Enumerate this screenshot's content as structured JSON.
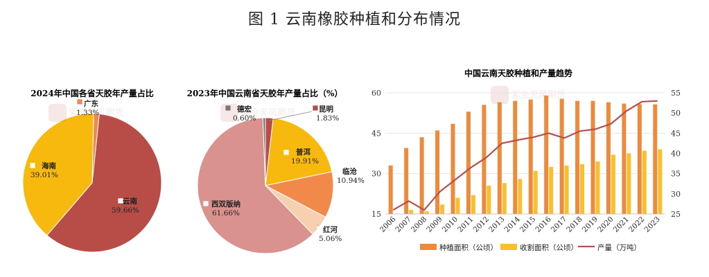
{
  "figure_title": "图 1  云南橡胶种植和分布情况",
  "watermark": "紫金天风期货",
  "chart_data": [
    {
      "type": "pie",
      "title": "2024年中国各省天胶年产量占比",
      "slices": [
        {
          "label": "广东",
          "value": 1.33,
          "value_text": "1.33%",
          "color": "#F0894A"
        },
        {
          "label": "云南",
          "value": 59.66,
          "value_text": "59.66%",
          "color": "#B84C47"
        },
        {
          "label": "海南",
          "value": 39.01,
          "value_text": "39.01%",
          "color": "#F7B90E"
        }
      ]
    },
    {
      "type": "pie",
      "title": "2023年中国云南省天胶年产量占比（%）",
      "slices": [
        {
          "label": "昆明",
          "value": 1.83,
          "value_text": "1.83%",
          "color": "#B84C47"
        },
        {
          "label": "普洱",
          "value": 19.91,
          "value_text": "19.91%",
          "color": "#F7B90E"
        },
        {
          "label": "临沧",
          "value": 10.94,
          "value_text": "10.94%",
          "color": "#F0894A"
        },
        {
          "label": "红河",
          "value": 5.06,
          "value_text": "5.06%",
          "color": "#F7D0B0"
        },
        {
          "label": "西双版纳",
          "value": 61.66,
          "value_text": "61.66%",
          "color": "#D9928D"
        },
        {
          "label": "德宏",
          "value": 0.6,
          "value_text": "0.60%",
          "color": "#7A7A7A"
        }
      ]
    },
    {
      "type": "bar+line",
      "title": "中国云南天胶种植和产量趋势",
      "categories": [
        "2006",
        "2007",
        "2008",
        "2009",
        "2010",
        "2011",
        "2012",
        "2013",
        "2014",
        "2015",
        "2016",
        "2017",
        "2018",
        "2019",
        "2020",
        "2021",
        "2022",
        "2023"
      ],
      "left_axis": {
        "ylim": [
          15,
          60
        ],
        "ticks": [
          15,
          30,
          45,
          60
        ]
      },
      "right_axis": {
        "ylim": [
          25,
          55
        ],
        "ticks": [
          25,
          30,
          35,
          40,
          45,
          50,
          55
        ]
      },
      "series": [
        {
          "name": "种植面积（公顷）",
          "type": "bar",
          "axis": "left",
          "color": "#EE8A3C",
          "values": [
            33,
            39.5,
            43.5,
            46,
            48.5,
            53,
            55.5,
            56.5,
            57,
            57.5,
            59,
            57.8,
            57,
            57,
            56.5,
            56,
            55.8,
            55.7
          ]
        },
        {
          "name": "收割面积（公顷）",
          "type": "bar",
          "axis": "left",
          "color": "#F9C02E",
          "values": [
            15,
            16.5,
            16,
            18.5,
            21,
            22,
            25.5,
            26.5,
            28,
            31,
            32.5,
            33,
            33.5,
            34.5,
            37,
            37.5,
            38.5,
            39
          ]
        },
        {
          "name": "产量（万吨）",
          "type": "line",
          "axis": "right",
          "color": "#B4504C",
          "values": [
            26,
            28.2,
            26,
            30.5,
            33.5,
            36.5,
            39,
            42.5,
            43.3,
            44,
            45,
            43.8,
            45.5,
            46,
            47.3,
            50.5,
            52.8,
            53
          ]
        }
      ]
    }
  ]
}
